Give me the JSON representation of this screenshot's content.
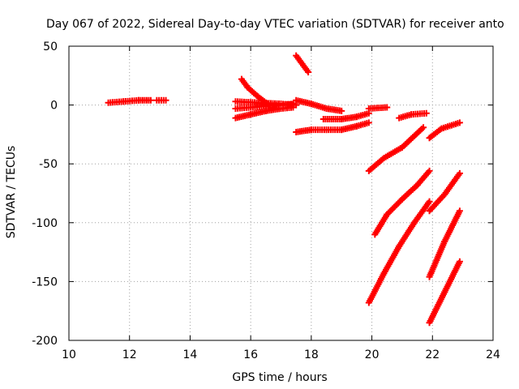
{
  "chart_data": {
    "type": "scatter",
    "title": "Day 067 of 2022, Sidereal Day-to-day VTEC variation (SDTVAR) for receiver anto",
    "xlabel": "GPS time / hours",
    "ylabel": "SDTVAR / TECUs",
    "xlim": [
      10,
      24
    ],
    "ylim": [
      -200,
      50
    ],
    "x_ticks": [
      10,
      12,
      14,
      16,
      18,
      20,
      22,
      24
    ],
    "y_ticks": [
      50,
      0,
      -50,
      -100,
      -150,
      -200
    ],
    "grid": true,
    "marker": "plus",
    "color": "#ff0000",
    "series": [
      {
        "x": [
          11.3,
          11.8,
          12.3,
          12.7
        ],
        "y": [
          2,
          3,
          4,
          4
        ]
      },
      {
        "x": [
          12.9,
          13.2
        ],
        "y": [
          4,
          4
        ]
      },
      {
        "x": [
          15.7,
          15.9,
          16.2,
          16.6
        ],
        "y": [
          22,
          15,
          8,
          0
        ]
      },
      {
        "x": [
          15.5,
          16.0,
          16.5,
          17.0,
          17.4
        ],
        "y": [
          -3,
          -2,
          -1,
          0,
          1
        ]
      },
      {
        "x": [
          15.5,
          16.0,
          16.5,
          17.0,
          17.4
        ],
        "y": [
          -11,
          -8,
          -5,
          -3,
          -2
        ]
      },
      {
        "x": [
          15.5,
          16.2,
          17.0,
          17.5
        ],
        "y": [
          3,
          2,
          1,
          0
        ]
      },
      {
        "x": [
          17.5,
          17.9
        ],
        "y": [
          42,
          28
        ]
      },
      {
        "x": [
          17.5,
          18.0,
          18.5,
          19.0
        ],
        "y": [
          4,
          1,
          -3,
          -5
        ]
      },
      {
        "x": [
          17.5,
          18.0,
          18.5,
          19.0,
          19.5,
          19.9
        ],
        "y": [
          -23,
          -21,
          -21,
          -21,
          -18,
          -15
        ]
      },
      {
        "x": [
          18.4,
          19.0,
          19.5,
          19.9
        ],
        "y": [
          -12,
          -12,
          -10,
          -7
        ]
      },
      {
        "x": [
          19.9,
          20.5
        ],
        "y": [
          -3,
          -2
        ]
      },
      {
        "x": [
          20.9,
          21.3,
          21.8
        ],
        "y": [
          -11,
          -8,
          -7
        ]
      },
      {
        "x": [
          19.9,
          20.4,
          21.0,
          21.7
        ],
        "y": [
          -56,
          -45,
          -36,
          -19
        ]
      },
      {
        "x": [
          20.1,
          20.5,
          21.0,
          21.5,
          21.9
        ],
        "y": [
          -110,
          -93,
          -80,
          -68,
          -56
        ]
      },
      {
        "x": [
          19.9,
          20.4,
          20.9,
          21.4,
          21.9
        ],
        "y": [
          -168,
          -143,
          -120,
          -100,
          -82
        ]
      },
      {
        "x": [
          21.9,
          22.3,
          22.9
        ],
        "y": [
          -28,
          -20,
          -15
        ]
      },
      {
        "x": [
          21.9,
          22.4,
          22.9
        ],
        "y": [
          -90,
          -76,
          -58
        ]
      },
      {
        "x": [
          21.9,
          22.4,
          22.9
        ],
        "y": [
          -146,
          -116,
          -90
        ]
      },
      {
        "x": [
          21.9,
          22.4,
          22.9
        ],
        "y": [
          -185,
          -159,
          -133
        ]
      }
    ]
  }
}
